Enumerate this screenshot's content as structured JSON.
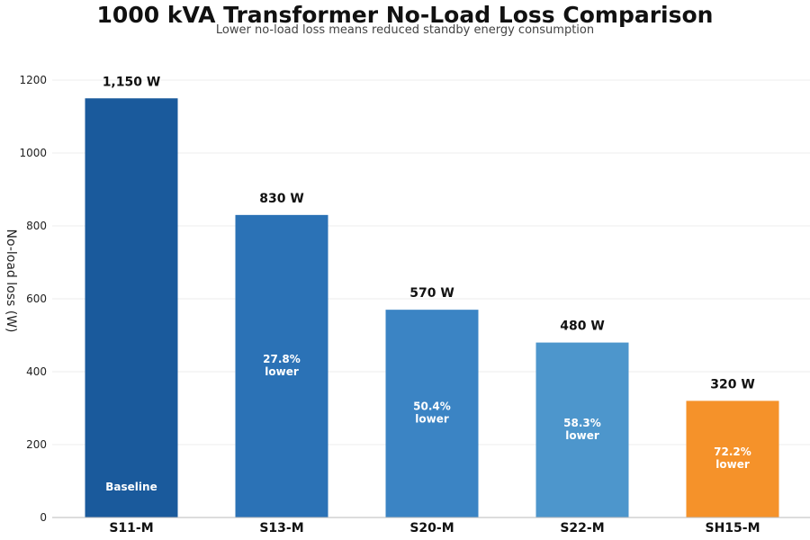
{
  "chart_data": {
    "type": "bar",
    "title": "1000 kVA Transformer No-Load Loss Comparison",
    "subtitle": "Lower no-load loss means reduced standby energy consumption",
    "ylabel": "No-load loss (W)",
    "xlabel": "",
    "ylim": [
      0,
      1200
    ],
    "yticks": [
      0,
      200,
      400,
      600,
      800,
      1000,
      1200
    ],
    "grid": true,
    "categories": [
      "S11-M",
      "S13-M",
      "S20-M",
      "S22-M",
      "SH15-M"
    ],
    "values": [
      1150,
      830,
      570,
      480,
      320
    ],
    "value_labels": [
      "1,150 W",
      "830 W",
      "570 W",
      "480 W",
      "320 W"
    ],
    "inner_labels": [
      [
        "Baseline"
      ],
      [
        "27.8%",
        "lower"
      ],
      [
        "50.4%",
        "lower"
      ],
      [
        "58.3%",
        "lower"
      ],
      [
        "72.2%",
        "lower"
      ]
    ],
    "colors": [
      "#1a5a9c",
      "#2b72b6",
      "#3b84c4",
      "#4d96cc",
      "#f5922a"
    ]
  }
}
